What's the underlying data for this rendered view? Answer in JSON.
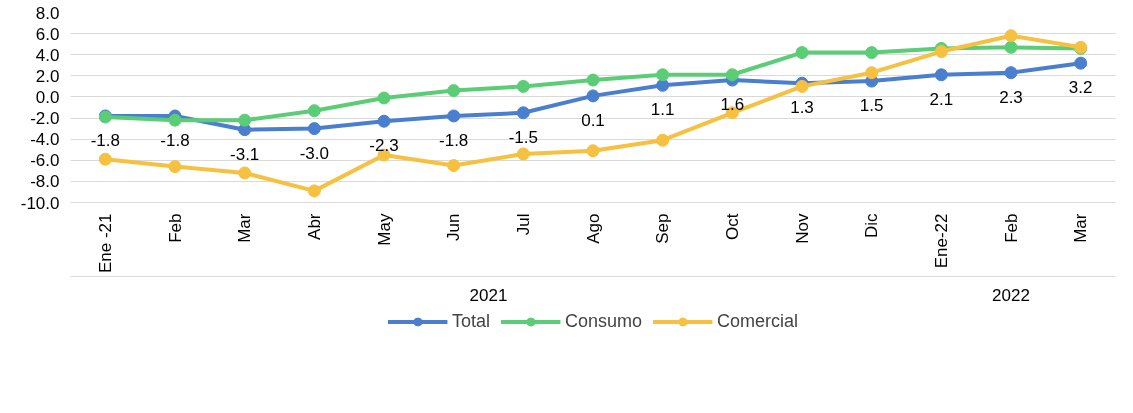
{
  "chart_data": {
    "type": "line",
    "categories": [
      "Ene -21",
      "Feb",
      "Mar",
      "Abr",
      "May",
      "Jun",
      "Jul",
      "Ago",
      "Sep",
      "Oct",
      "Nov",
      "Dic",
      "Ene-22",
      "Feb",
      "Mar"
    ],
    "series": [
      {
        "name": "Total",
        "color": "#4a7fd0",
        "values": [
          -1.8,
          -1.8,
          -3.1,
          -3.0,
          -2.3,
          -1.8,
          -1.5,
          0.1,
          1.1,
          1.6,
          1.3,
          1.5,
          2.1,
          2.3,
          3.2
        ],
        "value_labels": [
          "-1.8",
          "-1.8",
          "-3.1",
          "-3.0",
          "-2.3",
          "-1.8",
          "-1.5",
          "0.1",
          "1.1",
          "1.6",
          "1.3",
          "1.5",
          "2.1",
          "2.3",
          "3.2"
        ]
      },
      {
        "name": "Consumo",
        "color": "#5ccd77",
        "values": [
          -1.9,
          -2.2,
          -2.2,
          -1.3,
          -0.1,
          0.6,
          1.0,
          1.6,
          2.1,
          2.1,
          4.2,
          4.2,
          4.6,
          4.7,
          4.6
        ]
      },
      {
        "name": "Comercial",
        "color": "#f6c040",
        "values": [
          -5.9,
          -6.6,
          -7.2,
          -8.9,
          -5.5,
          -6.5,
          -5.4,
          -5.1,
          -4.1,
          -1.5,
          1.0,
          2.3,
          4.3,
          5.8,
          4.7
        ]
      }
    ],
    "annotations": [
      "2021",
      "2022"
    ],
    "ylim": [
      -10,
      8
    ],
    "yticks": [
      {
        "value": -10,
        "label": "-10.0"
      },
      {
        "value": -8,
        "label": "-8.0"
      },
      {
        "value": -6,
        "label": "-6.0"
      },
      {
        "value": -4,
        "label": "-4.0"
      },
      {
        "value": -2,
        "label": "-2.0"
      },
      {
        "value": 0,
        "label": "0.0"
      },
      {
        "value": 2,
        "label": "2.0"
      },
      {
        "value": 4,
        "label": "4.0"
      },
      {
        "value": 6,
        "label": "6.0"
      },
      {
        "value": 8,
        "label": "8.0"
      }
    ],
    "grid": "y",
    "legend": "bottom",
    "marker": "circle",
    "line_style": "solid"
  }
}
